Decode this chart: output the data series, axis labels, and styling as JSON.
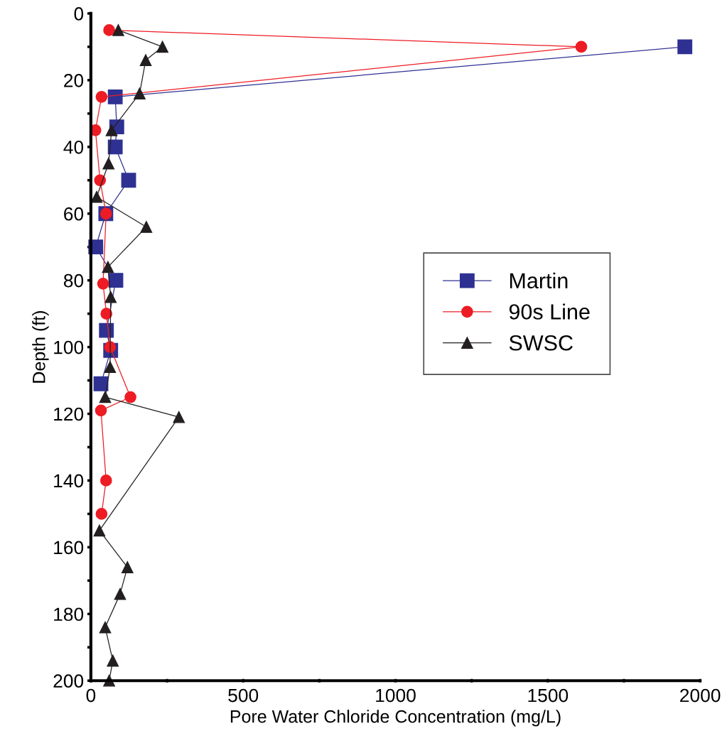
{
  "chart_data": {
    "type": "line",
    "xlabel": "Pore Water Chloride Concentration (mg/L)",
    "ylabel": "Depth (ft)",
    "xlim": [
      0,
      2000
    ],
    "ylim": [
      200,
      0
    ],
    "xticks": [
      0,
      {
        "value": 250,
        "label": null
      },
      500,
      {
        "value": 750,
        "label": null
      },
      1000,
      {
        "value": 1250,
        "label": null
      },
      1500,
      {
        "value": 1750,
        "label": null
      },
      2000
    ],
    "yticks": [
      0,
      {
        "value": 10,
        "label": null
      },
      20,
      {
        "value": 30,
        "label": null
      },
      40,
      {
        "value": 50,
        "label": null
      },
      60,
      {
        "value": 70,
        "label": null
      },
      80,
      {
        "value": 90,
        "label": null
      },
      100,
      {
        "value": 110,
        "label": null
      },
      120,
      {
        "value": 130,
        "label": null
      },
      140,
      {
        "value": 150,
        "label": null
      },
      160,
      {
        "value": 170,
        "label": null
      },
      180,
      {
        "value": 190,
        "label": null
      },
      200
    ],
    "grid": false,
    "legend": "right",
    "line_style": "solid",
    "series": [
      {
        "name": "Martin",
        "color": "#2e3192",
        "marker": "square",
        "x": [
          1950,
          80,
          85,
          80,
          124,
          49,
          16,
          82,
          51,
          65,
          33
        ],
        "values": [
          10,
          25,
          34,
          40,
          50,
          60,
          70,
          80,
          95,
          101,
          111
        ]
      },
      {
        "name": "90s Line",
        "color": "#ed1c24",
        "marker": "circle",
        "x": [
          60,
          1610,
          35,
          15,
          30,
          50,
          40,
          51,
          63,
          130,
          33,
          50,
          35
        ],
        "values": [
          5,
          10,
          25,
          35,
          50,
          60,
          81,
          90,
          100,
          115,
          119,
          140,
          150
        ]
      },
      {
        "name": "SWSC",
        "color": "#231f20",
        "marker": "triangle",
        "x": [
          90,
          235,
          180,
          160,
          68,
          58,
          19,
          182,
          56,
          65,
          63,
          47,
          289,
          28,
          120,
          96,
          47,
          72,
          60
        ],
        "values": [
          5,
          10,
          14,
          24,
          35,
          45,
          55,
          64,
          76,
          85,
          106,
          115,
          121,
          155,
          166,
          174,
          184,
          194,
          200
        ]
      }
    ]
  }
}
